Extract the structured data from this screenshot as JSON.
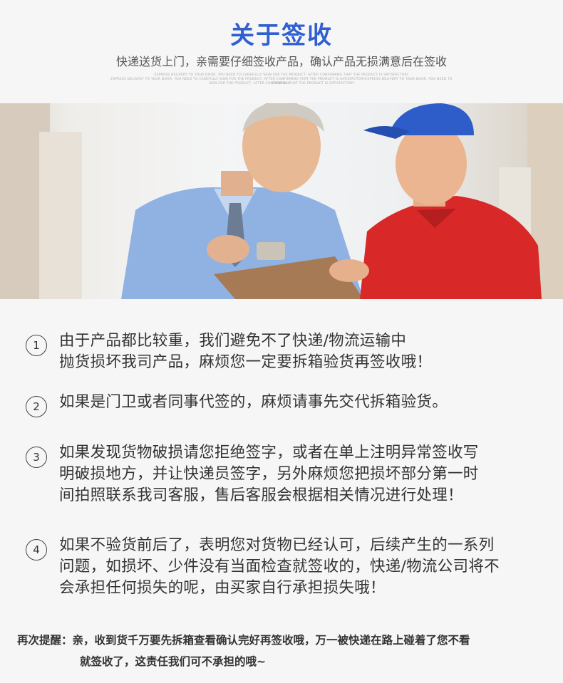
{
  "header": {
    "title": "关于签收",
    "subtitle": "快递送货上门，亲需要仔细签收产品，确认产品无损满意后在签收",
    "english_lines": [
      "EXPRESS DELIVERY TO YOUR DOOR, YOU NEED TO CAREFULLY SIGN FOR THE PRODUCT, AFTER CONFIRMING THAT THE PRODUCT IS SATISFACTORY",
      "EXPRESS DELIVERY TO YOUR DOOR, YOU NEED TO CAREFULLY SIGN FOR THE PRODUCT, AFTER CONFIRMING THAT THE PRODUCT IS SATISFACTORYEXPRESS DELIVERY TO YOUR DOOR, YOU NEED TO CAREFULLY",
      "SIGN FOR THE PRODUCT, AFTER CONFIRMING THAT THE PRODUCT IS SATISFACTORY"
    ]
  },
  "items": [
    {
      "number": "1",
      "lines": [
        "由于产品都比较重，我们避免不了快递/物流运输中",
        "抛货损坏我司产品，麻烦您一定要拆箱验货再签收哦！"
      ]
    },
    {
      "number": "2",
      "lines": [
        "如果是门卫或者同事代签的，麻烦请事先交代拆箱验货。"
      ]
    },
    {
      "number": "3",
      "lines": [
        "如果发现货物破损请您拒绝签字，或者在单上注明异常签收写",
        "明破损地方，并让快递员签字，另外麻烦您把损坏部分第一时",
        "间拍照联系我司客服，售后客服会根据相关情况进行处理！"
      ]
    },
    {
      "number": "4",
      "lines": [
        "如果不验货前后了，表明您对货物已经认可，后续产生的一系列",
        "问题，如损坏、少件没有当面检查就签收的，快递/物流公司将不",
        "会承担任何损失的呢，由买家自行承担损失哦！"
      ]
    }
  ],
  "reminder": {
    "line1": "再次提醒：亲，收到货千万要先拆箱查看确认完好再签收哦，万一被快递在路上碰着了您不看",
    "line2": "就签收了，这责任我们可不承担的哦~"
  },
  "colors": {
    "title": "#2f5fd0",
    "background": "#f6f6f6",
    "text": "#333333"
  }
}
